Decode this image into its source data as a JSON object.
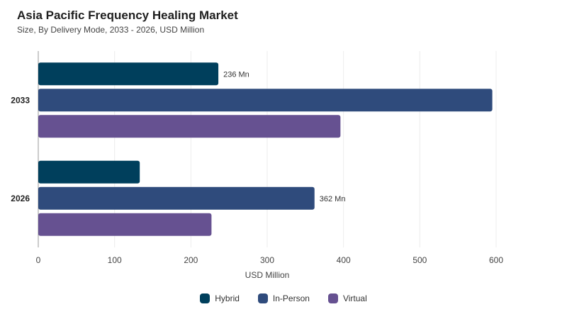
{
  "header": {
    "title": "Asia Pacific Frequency Healing Market",
    "subtitle": "Size, By Delivery Mode, 2033 - 2026, USD Million"
  },
  "chart_data": {
    "type": "bar",
    "orientation": "horizontal",
    "title": "Asia Pacific Frequency Healing Market",
    "subtitle": "Size, By Delivery Mode, 2033 - 2026, USD Million",
    "xlabel": "USD Million",
    "ylabel": "",
    "categories": [
      "2033",
      "2026"
    ],
    "xlim": [
      0,
      600
    ],
    "xticks": [
      0,
      100,
      200,
      300,
      400,
      500,
      600
    ],
    "grid": true,
    "legend_position": "bottom-center",
    "series": [
      {
        "name": "Hybrid",
        "color": "#003f5c",
        "values": [
          236,
          133
        ],
        "labels": [
          "236 Mn",
          ""
        ]
      },
      {
        "name": "In-Person",
        "color": "#2f4b7c",
        "values": [
          595,
          362
        ],
        "labels": [
          "",
          "362 Mn"
        ]
      },
      {
        "name": "Virtual",
        "color": "#665191",
        "values": [
          396,
          227
        ],
        "labels": [
          "",
          ""
        ]
      }
    ]
  }
}
